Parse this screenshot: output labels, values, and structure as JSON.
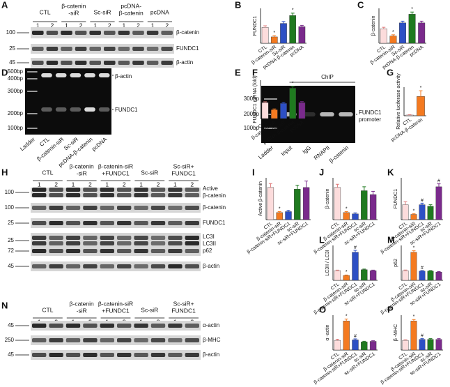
{
  "blots": [
    {
      "letter": "A",
      "groups": [
        [
          "CTL"
        ],
        [
          "β-catenin",
          "-siR"
        ],
        [
          "Sc-siR"
        ],
        [
          "pcDNA-",
          "β-catenin"
        ],
        [
          "pcDNA"
        ]
      ],
      "lanes": [
        1,
        2
      ],
      "rows": [
        {
          "marker": 100,
          "label": [
            "β-catenin"
          ]
        },
        {
          "marker": 25,
          "label": [
            "FUNDC1"
          ]
        },
        {
          "marker": 45,
          "label": [
            "β-actin"
          ]
        }
      ]
    },
    {
      "letter": "H",
      "groups": [
        [
          "CTL"
        ],
        [
          "β-catenin",
          "-siR"
        ],
        [
          "β-catenin-siR",
          "+FUNDC1"
        ],
        [
          "Sc-siR"
        ],
        [
          "Sc-siR+",
          "FUNDC1"
        ]
      ],
      "lanes": [
        1,
        2
      ],
      "rows": [
        {
          "marker": 100,
          "label": [
            "Active",
            "β-catenin"
          ]
        },
        {
          "marker": 100,
          "label": [
            "β-catenin"
          ]
        },
        {
          "marker": 25,
          "label": [
            "FUNDC1"
          ]
        },
        {
          "marker": 25,
          "label": [
            "LC3I",
            "LC3II"
          ]
        },
        {
          "marker": 72,
          "label": [
            "p62"
          ]
        },
        {
          "marker": 45,
          "label": [
            "β-actin"
          ]
        }
      ]
    },
    {
      "letter": "N",
      "groups": [
        [
          "CTL"
        ],
        [
          "β-catenin",
          "-siR"
        ],
        [
          "β-catenin-siR",
          "+FUNDC1"
        ],
        [
          "Sc-siR"
        ],
        [
          "Sc-siR+",
          "FUNDC1"
        ]
      ],
      "lanes": [
        1,
        2
      ],
      "rows": [
        {
          "marker": 45,
          "label": [
            "α-actin"
          ]
        },
        {
          "marker": 250,
          "label": [
            "β-MHC"
          ]
        },
        {
          "marker": 45,
          "label": [
            "β-actin"
          ]
        }
      ]
    }
  ],
  "gels": [
    {
      "letter": "D",
      "markers": [
        "500bp",
        "400bp",
        "300bp",
        "200bp",
        "100bp"
      ],
      "bands": [
        [
          "β-actin"
        ],
        [
          "FUNDC1"
        ]
      ],
      "lanes": [
        "Ladder",
        "CTL",
        "β-catenin-siR",
        "Sc-siR",
        "pcDNA-β-catenin",
        "pcDNA"
      ]
    },
    {
      "letter": "F",
      "title": "ChIP",
      "markers": [
        "300bp",
        "200bp",
        "100bp"
      ],
      "bands": [
        [
          "FUNDC1",
          "promoter"
        ]
      ],
      "lanes": [
        "Ladder",
        "Input",
        "IgG",
        "RNAPII",
        "β-catenin"
      ]
    }
  ],
  "chart_data": [
    {
      "type": "bar",
      "letter": "B",
      "ylabel": "FUNDC1",
      "categories": [
        "CTL",
        "β-catenin-siR",
        "Sc-siR",
        "pcDNA-β-catenin",
        "pcDNA"
      ],
      "values": [
        1.0,
        0.4,
        1.25,
        1.75,
        1.05
      ],
      "errors": [
        0.1,
        0.08,
        0.12,
        0.15,
        0.08
      ],
      "markers": [
        null,
        "*",
        null,
        "*",
        null
      ],
      "colors": [
        "#fcdcdc",
        "#f47a20",
        "#2d4fc4",
        "#1f7a1f",
        "#7a2a8c"
      ],
      "ylim": [
        0,
        2.2
      ]
    },
    {
      "type": "bar",
      "letter": "C",
      "ylabel": "β-catenin",
      "categories": [
        "CTL",
        "β-catenin-siR",
        "Sc-siR",
        "pcDNA-β-catenin",
        "pcDNA"
      ],
      "values": [
        1.0,
        0.5,
        1.4,
        2.0,
        1.4
      ],
      "errors": [
        0.1,
        0.08,
        0.12,
        0.15,
        0.12
      ],
      "markers": [
        null,
        "*",
        null,
        "*",
        null
      ],
      "colors": [
        "#fcdcdc",
        "#f47a20",
        "#2d4fc4",
        "#1f7a1f",
        "#7a2a8c"
      ],
      "ylim": [
        0,
        2.4
      ]
    },
    {
      "type": "bar",
      "letter": "E",
      "ylabel": "FUNDC1 mRNA (fold)",
      "categories": [
        "CTL",
        "β-catenin-siR",
        "Sc-siR",
        "pcDNA-β-catenin",
        "pcDNA"
      ],
      "values": [
        1.0,
        0.55,
        0.95,
        1.9,
        1.0
      ],
      "errors": [
        0.05,
        0.05,
        0.05,
        0.12,
        0.06
      ],
      "markers": [
        null,
        "*",
        null,
        "*",
        null
      ],
      "colors": [
        "#fcdcdc",
        "#f47a20",
        "#2d4fc4",
        "#1f7a1f",
        "#7a2a8c"
      ],
      "ylim": [
        0,
        2.4
      ]
    },
    {
      "type": "bar",
      "letter": "G",
      "ylabel": "Relative luciferase activity",
      "categories": [
        "CTL",
        "pcDNA-β-catenin"
      ],
      "values": [
        1,
        27
      ],
      "errors": [
        0.6,
        8
      ],
      "markers": [
        null,
        "*"
      ],
      "colors": [
        "#fcdcdc",
        "#f47a20"
      ],
      "ylim": [
        0,
        40
      ]
    },
    {
      "type": "bar",
      "letter": "I",
      "ylabel": "Active β-catenin",
      "categories": [
        "CTL",
        "β-catenin-siR",
        "β-catenin-siR+FUNDC1",
        "sc-siR",
        "sc-siR+FUNDC1"
      ],
      "values": [
        1.0,
        0.22,
        0.25,
        0.95,
        1.0
      ],
      "errors": [
        0.12,
        0.03,
        0.04,
        0.12,
        0.2
      ],
      "markers": [
        null,
        "*",
        null,
        null,
        null
      ],
      "colors": [
        "#fcdcdc",
        "#f47a20",
        "#2d4fc4",
        "#1f7a1f",
        "#7a2a8c"
      ],
      "ylim": [
        0,
        1.3
      ]
    },
    {
      "type": "bar",
      "letter": "J",
      "ylabel": "β-catenin",
      "categories": [
        "CTL",
        "β-catenin-siR",
        "β-catenin-siR+FUNDC1",
        "sc-siR",
        "sc-siR+FUNDC1"
      ],
      "values": [
        1.0,
        0.22,
        0.18,
        0.9,
        0.78
      ],
      "errors": [
        0.1,
        0.03,
        0.03,
        0.12,
        0.1
      ],
      "markers": [
        null,
        "*",
        null,
        null,
        null
      ],
      "colors": [
        "#fcdcdc",
        "#f47a20",
        "#2d4fc4",
        "#1f7a1f",
        "#7a2a8c"
      ],
      "ylim": [
        0,
        1.3
      ]
    },
    {
      "type": "bar",
      "letter": "K",
      "ylabel": "FUNDC1",
      "categories": [
        "CTL",
        "β-catenin-siR",
        "β-catenin-siR+FUNDC1",
        "sc-siR",
        "sc-siR+FUNDC1"
      ],
      "values": [
        1.0,
        0.35,
        1.0,
        0.9,
        2.2
      ],
      "errors": [
        0.2,
        0.05,
        0.1,
        0.1,
        0.2
      ],
      "markers": [
        null,
        "*",
        "#",
        null,
        "#"
      ],
      "colors": [
        "#fcdcdc",
        "#f47a20",
        "#2d4fc4",
        "#1f7a1f",
        "#7a2a8c"
      ],
      "ylim": [
        0,
        2.8
      ]
    },
    {
      "type": "bar",
      "letter": "L",
      "ylabel": "LC3II / LC3I",
      "categories": [
        "CTL",
        "β-catenin-siR",
        "β-catenin-siR+FUNDC1",
        "sc-siR",
        "sc-siR+FUNDC1"
      ],
      "values": [
        1.0,
        0.5,
        2.9,
        1.1,
        1.0
      ],
      "errors": [
        0.05,
        0.05,
        0.2,
        0.06,
        0.05
      ],
      "markers": [
        null,
        "*",
        "#",
        null,
        null
      ],
      "colors": [
        "#fcdcdc",
        "#f47a20",
        "#2d4fc4",
        "#1f7a1f",
        "#7a2a8c"
      ],
      "ylim": [
        0,
        3.6
      ]
    },
    {
      "type": "bar",
      "letter": "M",
      "ylabel": "p62",
      "categories": [
        "CTL",
        "β-catenin-siR",
        "β-catenin-siR+FUNDC1",
        "sc-siR",
        "sc-siR+FUNDC1"
      ],
      "values": [
        1.0,
        2.9,
        0.95,
        0.95,
        0.85
      ],
      "errors": [
        0.06,
        0.15,
        0.06,
        0.06,
        0.05
      ],
      "markers": [
        null,
        "*",
        "#",
        null,
        null
      ],
      "colors": [
        "#fcdcdc",
        "#f47a20",
        "#2d4fc4",
        "#1f7a1f",
        "#7a2a8c"
      ],
      "ylim": [
        0,
        3.6
      ]
    },
    {
      "type": "bar",
      "letter": "O",
      "ylabel": "α -actin",
      "categories": [
        "CTL",
        "β-catenin-siR",
        "β-catenin-siR+FUNDC1",
        "sc-siR",
        "sc-siR+FUNDC1"
      ],
      "values": [
        1.0,
        3.0,
        1.05,
        0.85,
        0.9
      ],
      "errors": [
        0.12,
        0.2,
        0.1,
        0.06,
        0.06
      ],
      "markers": [
        null,
        "*",
        "#",
        null,
        null
      ],
      "colors": [
        "#fcdcdc",
        "#f47a20",
        "#2d4fc4",
        "#1f7a1f",
        "#7a2a8c"
      ],
      "ylim": [
        0,
        3.6
      ]
    },
    {
      "type": "bar",
      "letter": "P",
      "ylabel": "β -MHC",
      "categories": [
        "CTL",
        "β-catenin-siR",
        "β-catenin-siR+FUNDC1",
        "sc-siR",
        "sc-siR+FUNDC1"
      ],
      "values": [
        1.0,
        3.0,
        1.1,
        1.1,
        1.1
      ],
      "errors": [
        0.06,
        0.15,
        0.08,
        0.08,
        0.08
      ],
      "markers": [
        null,
        "*",
        "#",
        null,
        null
      ],
      "colors": [
        "#fcdcdc",
        "#f47a20",
        "#2d4fc4",
        "#1f7a1f",
        "#7a2a8c"
      ],
      "ylim": [
        0,
        3.6
      ]
    }
  ]
}
